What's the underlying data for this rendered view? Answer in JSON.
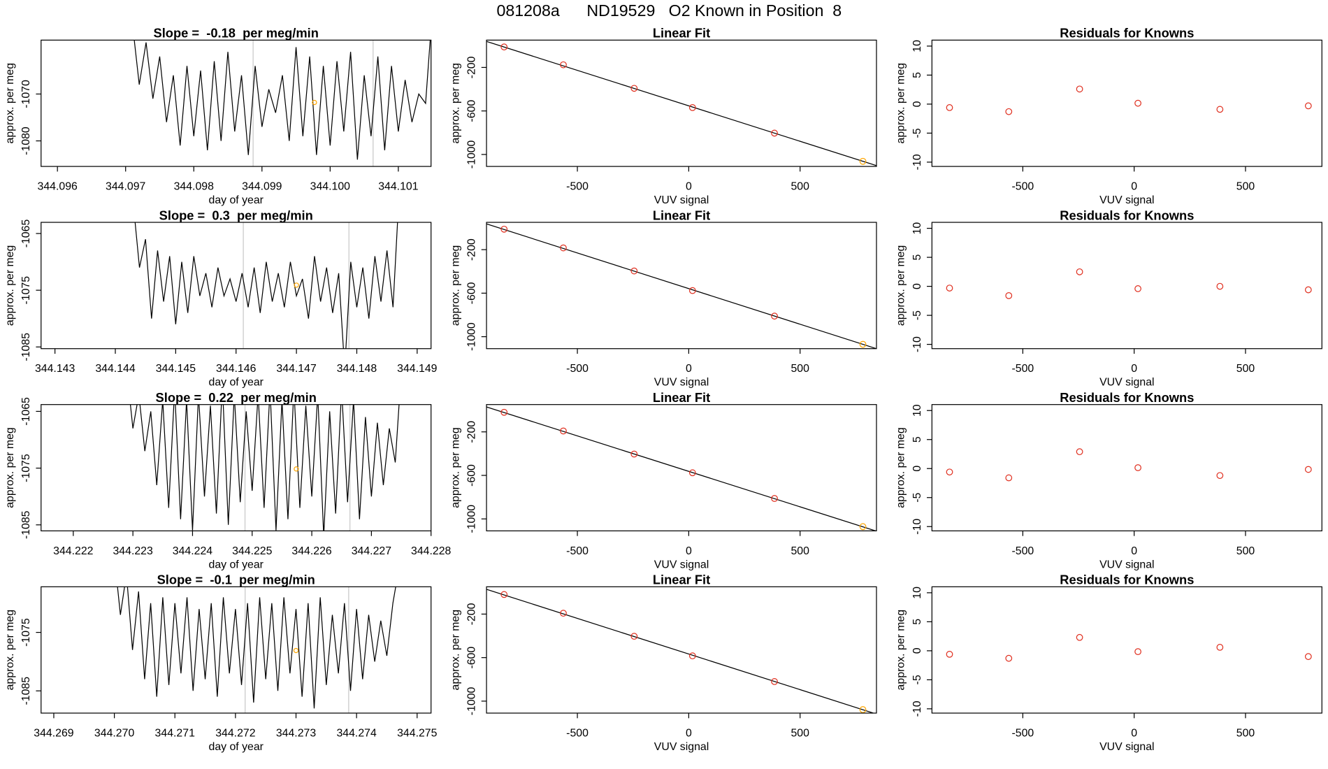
{
  "title": "081208a      ND19529   O2 Known in Position  8",
  "chart_data": [
    {
      "type": "line",
      "title": "Slope =  -0.18  per meg/min",
      "x_label": "day of year",
      "y_label": "approx. per meg",
      "xlim": [
        344.09576,
        344.10148
      ],
      "ylim": [
        -1085.45,
        -1058.5
      ],
      "xticks": [
        344.096,
        344.097,
        344.098,
        344.099,
        {
          "value": 344.1,
          "label": "344.100"
        },
        344.101
      ],
      "yticks": [
        -1080,
        -1070
      ],
      "x": [
        344.0971,
        344.0972,
        344.0973,
        344.0974,
        344.0975,
        344.0976,
        344.0977,
        344.0978,
        344.0979,
        344.098,
        344.0981,
        344.0982,
        344.0983,
        344.0984,
        344.0985,
        344.0986,
        344.0987,
        344.0988,
        344.0989,
        344.099,
        344.0991,
        344.0992,
        344.0993,
        344.0994,
        344.0995,
        344.0996,
        344.0997,
        344.0998,
        344.0999,
        344.1,
        344.1001,
        344.1002,
        344.1003,
        344.1004,
        344.1005,
        344.1006,
        344.1007,
        344.1008,
        344.1009,
        344.101,
        344.1011,
        344.1012,
        344.1013,
        344.1014,
        344.1015
      ],
      "values": [
        -1055,
        -1068,
        -1059,
        -1071,
        -1062,
        -1076,
        -1066,
        -1081,
        -1064,
        -1079,
        -1065,
        -1082,
        -1063,
        -1080,
        -1061,
        -1078,
        -1066,
        -1083,
        -1064,
        -1077,
        -1069,
        -1074,
        -1066,
        -1080,
        -1060,
        -1079,
        -1062,
        -1083,
        -1064,
        -1081,
        -1063,
        -1078,
        -1061,
        -1084,
        -1066,
        -1079,
        -1062,
        -1082,
        -1064,
        -1078,
        -1067,
        -1076,
        -1070,
        -1072,
        -1052
      ],
      "color": "#000000",
      "vlines": [
        344.09887,
        344.10063
      ],
      "vline_color": "#c8c8c8",
      "highlight": {
        "x": 344.09977,
        "y": -1071.8,
        "color": "#ffa500"
      }
    },
    {
      "type": "scatter",
      "title": "Linear Fit",
      "x_label": "VUV signal",
      "y_label": "approx. per meg",
      "xlim": [
        -908,
        843
      ],
      "ylim": [
        -1110,
        51
      ],
      "xticks": [
        -500,
        0,
        500
      ],
      "yticks": [
        -1000,
        -600,
        -200
      ],
      "x": [
        -829,
        -563,
        -245,
        17,
        385,
        782
      ],
      "values": [
        -12,
        -176,
        -392,
        -569,
        -804,
        -1063
      ],
      "colors": [
        "#e03020",
        "#e03020",
        "#e03020",
        "#e03020",
        "#e03020",
        "#ffa500"
      ],
      "fit": {
        "slope": -0.652,
        "intercept": -553
      }
    },
    {
      "type": "scatter",
      "title": "Residuals for Knowns",
      "x_label": "VUV signal",
      "y_label": "approx. per meg",
      "xlim": [
        -908,
        843
      ],
      "ylim": [
        -10.74,
        11.03
      ],
      "xticks": [
        -500,
        0,
        500
      ],
      "yticks": [
        -10,
        -5,
        0,
        5,
        10
      ],
      "x": [
        -829,
        -563,
        -245,
        17,
        385,
        782
      ],
      "values": [
        -0.6,
        -1.3,
        2.6,
        0.15,
        -0.9,
        -0.3
      ],
      "colors": [
        "#e03020",
        "#e03020",
        "#e03020",
        "#e03020",
        "#e03020",
        "#e03020"
      ]
    },
    {
      "type": "line",
      "title": "Slope =  0.3  per meg/min",
      "x_label": "day of year",
      "y_label": "approx. per meg",
      "xlim": [
        344.14277,
        344.14923
      ],
      "ylim": [
        -1085.3,
        -1063.03
      ],
      "xticks": [
        344.143,
        344.144,
        344.145,
        344.146,
        344.147,
        344.148,
        344.149
      ],
      "yticks": [
        -1085,
        -1075,
        -1065
      ],
      "x": [
        344.1443,
        344.1444,
        344.1445,
        344.1446,
        344.1447,
        344.1448,
        344.1449,
        344.145,
        344.1451,
        344.1452,
        344.1453,
        344.1454,
        344.1455,
        344.1456,
        344.1457,
        344.1458,
        344.1459,
        344.146,
        344.1461,
        344.1462,
        344.1463,
        344.1464,
        344.1465,
        344.1466,
        344.1467,
        344.1468,
        344.1469,
        344.147,
        344.1471,
        344.1472,
        344.1473,
        344.1474,
        344.1475,
        344.1476,
        344.1477,
        344.1478,
        344.1479,
        344.148,
        344.1481,
        344.1482,
        344.1483,
        344.1484,
        344.1485,
        344.1486,
        344.1487
      ],
      "values": [
        -1060,
        -1071,
        -1066,
        -1080,
        -1068,
        -1077,
        -1069,
        -1081,
        -1070,
        -1079,
        -1069,
        -1076,
        -1072,
        -1078,
        -1071,
        -1076,
        -1073,
        -1077,
        -1072,
        -1078,
        -1071,
        -1079,
        -1070,
        -1077,
        -1072,
        -1078,
        -1070,
        -1076,
        -1073,
        -1080,
        -1069,
        -1077,
        -1071,
        -1079,
        -1072,
        -1089,
        -1070,
        -1078,
        -1071,
        -1080,
        -1069,
        -1077,
        -1068,
        -1078,
        -1058
      ],
      "color": "#000000",
      "vlines": [
        344.14612,
        344.14787
      ],
      "vline_color": "#c8c8c8",
      "highlight": {
        "x": 344.147,
        "y": -1074.1,
        "color": "#ffa500"
      }
    },
    {
      "type": "scatter",
      "title": "Linear Fit",
      "x_label": "VUV signal",
      "y_label": "approx. per meg",
      "xlim": [
        -908,
        843
      ],
      "ylim": [
        -1110,
        51
      ],
      "xticks": [
        -500,
        0,
        500
      ],
      "yticks": [
        -1000,
        -600,
        -200
      ],
      "x": [
        -829,
        -563,
        -245,
        17,
        385,
        782
      ],
      "values": [
        -12,
        -184,
        -396,
        -576,
        -811,
        -1070
      ],
      "colors": [
        "#e03020",
        "#e03020",
        "#e03020",
        "#e03020",
        "#e03020",
        "#ffa500"
      ],
      "fit": {
        "slope": -0.655,
        "intercept": -558
      }
    },
    {
      "type": "scatter",
      "title": "Residuals for Knowns",
      "x_label": "VUV signal",
      "y_label": "approx. per meg",
      "xlim": [
        -908,
        843
      ],
      "ylim": [
        -10.74,
        11.03
      ],
      "xticks": [
        -500,
        0,
        500
      ],
      "yticks": [
        -10,
        -5,
        0,
        5,
        10
      ],
      "x": [
        -829,
        -563,
        -245,
        17,
        385,
        782
      ],
      "values": [
        -0.3,
        -1.6,
        2.5,
        -0.4,
        0,
        -0.6
      ],
      "colors": [
        "#e03020",
        "#e03020",
        "#e03020",
        "#e03020",
        "#e03020",
        "#e03020"
      ]
    },
    {
      "type": "line",
      "title": "Slope =  0.22  per meg/min",
      "x_label": "day of year",
      "y_label": "approx. per meg",
      "xlim": [
        344.22146,
        344.228
      ],
      "ylim": [
        -1086.06,
        -1063.8
      ],
      "xticks": [
        344.222,
        344.223,
        344.224,
        344.225,
        344.226,
        344.227,
        344.228
      ],
      "yticks": [
        -1085,
        -1075,
        -1065
      ],
      "x": [
        344.2229,
        344.223,
        344.2231,
        344.2232,
        344.2233,
        344.2234,
        344.2235,
        344.2236,
        344.2237,
        344.2238,
        344.2239,
        344.224,
        344.2241,
        344.2242,
        344.2243,
        344.2244,
        344.2245,
        344.2246,
        344.2247,
        344.2248,
        344.2249,
        344.225,
        344.2251,
        344.2252,
        344.2253,
        344.2254,
        344.2255,
        344.2256,
        344.2257,
        344.2258,
        344.2259,
        344.226,
        344.2261,
        344.2262,
        344.2263,
        344.2264,
        344.2265,
        344.2266,
        344.2267,
        344.2268,
        344.2269,
        344.227,
        344.2271,
        344.2272,
        344.2273,
        344.2274,
        344.2275
      ],
      "values": [
        -1058,
        -1068,
        -1062,
        -1072,
        -1065,
        -1078,
        -1063,
        -1082,
        -1061,
        -1084,
        -1063,
        -1086,
        -1062,
        -1080,
        -1064,
        -1083,
        -1060,
        -1085,
        -1062,
        -1081,
        -1065,
        -1079,
        -1062,
        -1082,
        -1061,
        -1086,
        -1063,
        -1084,
        -1061,
        -1082,
        -1064,
        -1080,
        -1062,
        -1087,
        -1065,
        -1083,
        -1061,
        -1081,
        -1063,
        -1084,
        -1066,
        -1080,
        -1067,
        -1078,
        -1068,
        -1074,
        -1058
      ],
      "color": "#000000",
      "vlines": [
        344.22488,
        344.22664
      ],
      "vline_color": "#c8c8c8",
      "highlight": {
        "x": 344.22574,
        "y": -1075.15,
        "color": "#ffa500"
      }
    },
    {
      "type": "scatter",
      "title": "Linear Fit",
      "x_label": "VUV signal",
      "y_label": "approx. per meg",
      "xlim": [
        -908,
        843
      ],
      "ylim": [
        -1110,
        51
      ],
      "xticks": [
        -500,
        0,
        500
      ],
      "yticks": [
        -1000,
        -600,
        -200
      ],
      "x": [
        -829,
        -563,
        -245,
        17,
        385,
        782
      ],
      "values": [
        -20,
        -192,
        -404,
        -576,
        -812,
        -1071
      ],
      "colors": [
        "#e03020",
        "#e03020",
        "#e03020",
        "#e03020",
        "#e03020",
        "#ffa500"
      ],
      "fit": {
        "slope": -0.652,
        "intercept": -563
      }
    },
    {
      "type": "scatter",
      "title": "Residuals for Knowns",
      "x_label": "VUV signal",
      "y_label": "approx. per meg",
      "xlim": [
        -908,
        843
      ],
      "ylim": [
        -10.74,
        11.03
      ],
      "xticks": [
        -500,
        0,
        500
      ],
      "yticks": [
        -10,
        -5,
        0,
        5,
        10
      ],
      "x": [
        -829,
        -563,
        -245,
        17,
        385,
        782
      ],
      "values": [
        -0.6,
        -1.6,
        2.9,
        0.15,
        -1.2,
        -0.15
      ],
      "colors": [
        "#e03020",
        "#e03020",
        "#e03020",
        "#e03020",
        "#e03020",
        "#e03020"
      ]
    },
    {
      "type": "line",
      "title": "Slope =  -0.1  per meg/min",
      "x_label": "day of year",
      "y_label": "approx. per meg",
      "xlim": [
        344.26879,
        344.27523
      ],
      "ylim": [
        -1088.8,
        -1067.2
      ],
      "xticks": [
        344.269,
        {
          "value": 344.27,
          "label": "344.270"
        },
        344.271,
        344.272,
        344.273,
        344.274,
        344.275
      ],
      "yticks": [
        -1085,
        -1075
      ],
      "x": [
        344.27,
        344.2701,
        344.2702,
        344.2703,
        344.2704,
        344.2705,
        344.2706,
        344.2707,
        344.2708,
        344.2709,
        344.271,
        344.2711,
        344.2712,
        344.2713,
        344.2714,
        344.2715,
        344.2716,
        344.2717,
        344.2718,
        344.2719,
        344.272,
        344.2721,
        344.2722,
        344.2723,
        344.2724,
        344.2725,
        344.2726,
        344.2727,
        344.2728,
        344.2729,
        344.273,
        344.2731,
        344.2732,
        344.2733,
        344.2734,
        344.2735,
        344.2736,
        344.2737,
        344.2738,
        344.2739,
        344.274,
        344.2741,
        344.2742,
        344.2743,
        344.2744,
        344.2745,
        344.2746,
        344.2747
      ],
      "values": [
        -1062,
        -1072,
        -1065,
        -1078,
        -1068,
        -1083,
        -1070,
        -1086,
        -1069,
        -1084,
        -1070,
        -1082,
        -1069,
        -1085,
        -1071,
        -1083,
        -1070,
        -1086,
        -1069,
        -1082,
        -1071,
        -1084,
        -1070,
        -1087,
        -1069,
        -1083,
        -1070,
        -1085,
        -1069,
        -1082,
        -1071,
        -1086,
        -1070,
        -1088,
        -1069,
        -1084,
        -1072,
        -1082,
        -1070,
        -1085,
        -1071,
        -1083,
        -1072,
        -1080,
        -1073,
        -1079,
        -1070,
        -1064
      ],
      "color": "#000000",
      "vlines": [
        344.27216,
        344.27387
      ],
      "vline_color": "#c8c8c8",
      "highlight": {
        "x": 344.273,
        "y": -1078.1,
        "color": "#ffa500"
      }
    },
    {
      "type": "scatter",
      "title": "Linear Fit",
      "x_label": "VUV signal",
      "y_label": "approx. per meg",
      "xlim": [
        -908,
        843
      ],
      "ylim": [
        -1110,
        51
      ],
      "xticks": [
        -500,
        0,
        500
      ],
      "yticks": [
        -1000,
        -600,
        -200
      ],
      "x": [
        -829,
        -563,
        -245,
        17,
        385,
        782
      ],
      "values": [
        -20,
        -192,
        -404,
        -584,
        -820,
        -1078
      ],
      "colors": [
        "#e03020",
        "#e03020",
        "#e03020",
        "#e03020",
        "#e03020",
        "#ffa500"
      ],
      "fit": {
        "slope": -0.655,
        "intercept": -567
      }
    },
    {
      "type": "scatter",
      "title": "Residuals for Knowns",
      "x_label": "VUV signal",
      "y_label": "approx. per meg",
      "xlim": [
        -908,
        843
      ],
      "ylim": [
        -10.74,
        11.03
      ],
      "xticks": [
        -500,
        0,
        500
      ],
      "yticks": [
        -10,
        -5,
        0,
        5,
        10
      ],
      "x": [
        -829,
        -563,
        -245,
        17,
        385,
        782
      ],
      "values": [
        -0.6,
        -1.3,
        2.3,
        -0.15,
        0.6,
        -1.0
      ],
      "colors": [
        "#e03020",
        "#e03020",
        "#e03020",
        "#e03020",
        "#e03020",
        "#e03020"
      ]
    }
  ]
}
